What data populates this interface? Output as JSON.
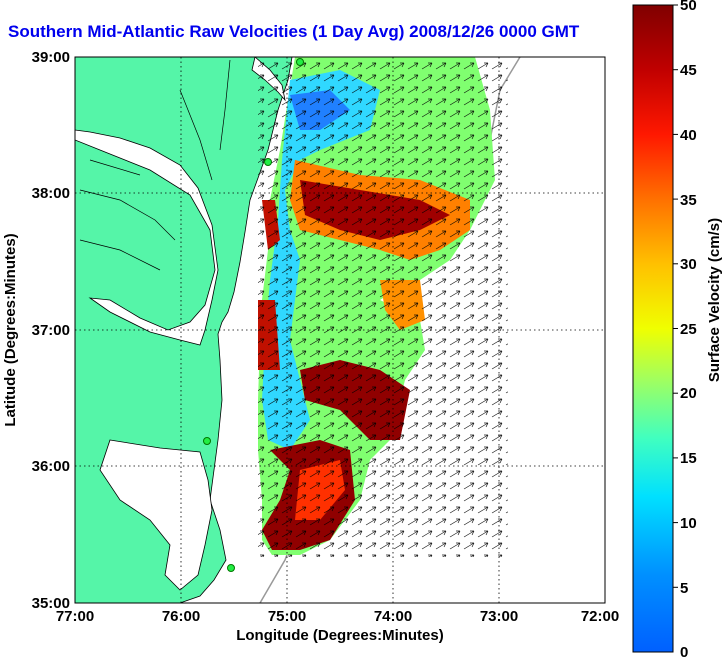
{
  "title": "Southern Mid-Atlantic Raw Velocities (1 Day Avg) 2008/12/26 0000 GMT",
  "x_axis": {
    "label": "Longitude (Degrees:Minutes)",
    "ticks": [
      "77:00",
      "76:00",
      "75:00",
      "74:00",
      "73:00",
      "72:00"
    ]
  },
  "y_axis": {
    "label": "Latitude (Degrees:Minutes)",
    "ticks": [
      "39:00",
      "38:00",
      "37:00",
      "36:00",
      "35:00"
    ]
  },
  "colorbar": {
    "label": "Surface Velocity (cm/s)",
    "ticks": [
      "50",
      "45",
      "40",
      "35",
      "30",
      "25",
      "20",
      "15",
      "10",
      "5",
      "0"
    ],
    "range": [
      0,
      50
    ]
  },
  "colors": {
    "land": "#55f5a8",
    "title": "#0000ee",
    "grid": "#000000"
  },
  "map_extent": {
    "lon": [
      -77,
      -72
    ],
    "lat": [
      35,
      39
    ]
  }
}
